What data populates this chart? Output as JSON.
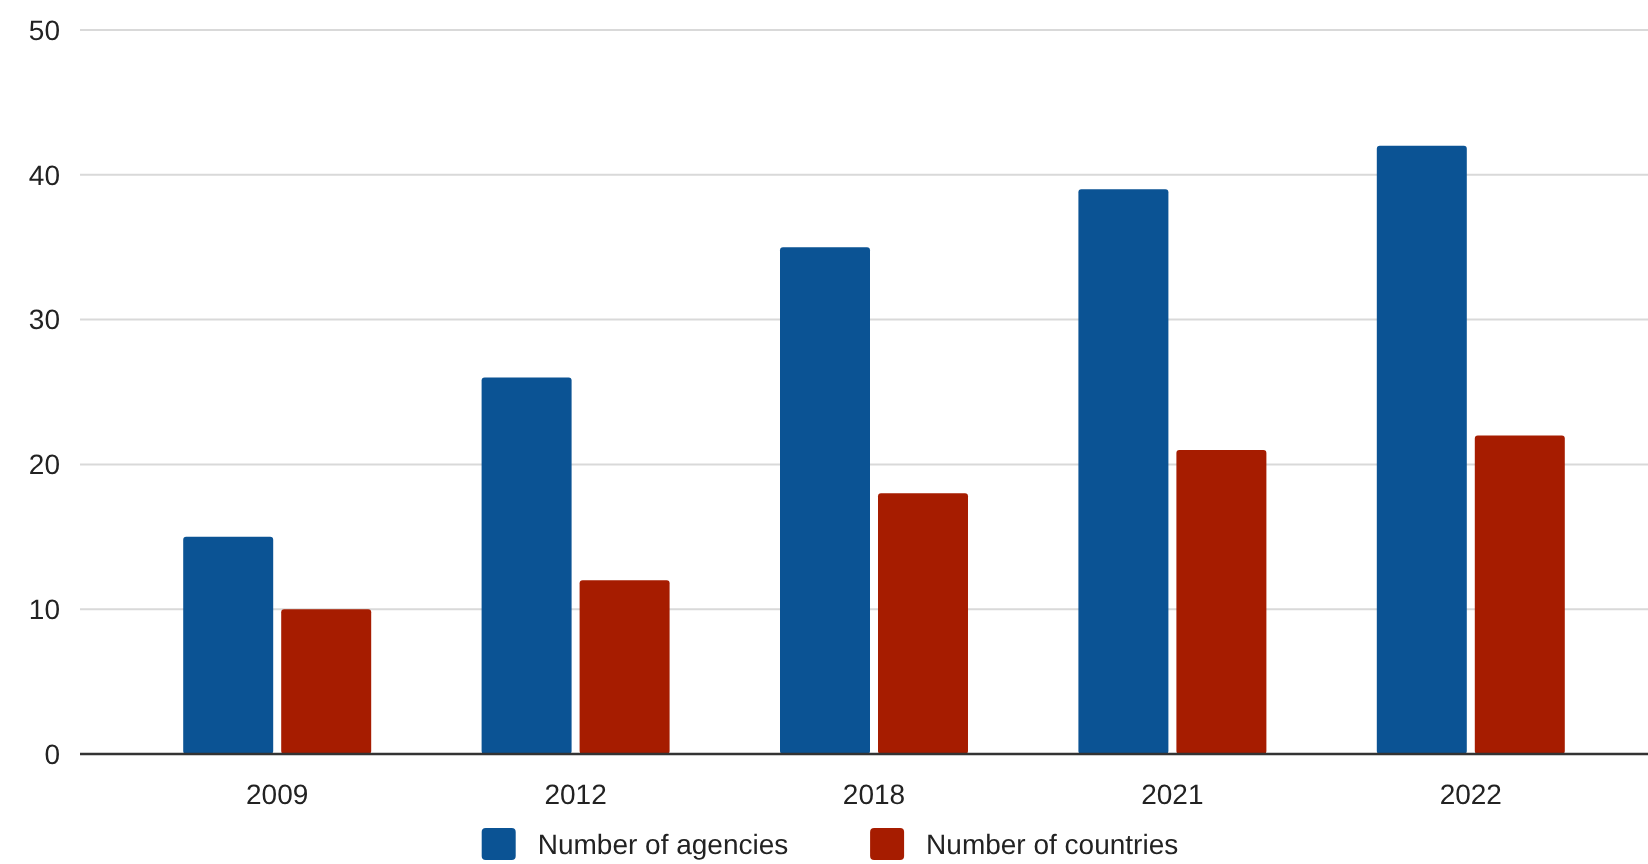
{
  "chart_data": {
    "type": "bar",
    "categories": [
      "2009",
      "2012",
      "2018",
      "2021",
      "2022"
    ],
    "series": [
      {
        "name": "Number of agencies",
        "color": "#0b5394",
        "values": [
          15,
          26,
          35,
          39,
          42
        ]
      },
      {
        "name": "Number of countries",
        "color": "#a61c00",
        "values": [
          10,
          12,
          18,
          21,
          22
        ]
      }
    ],
    "ylim": [
      0,
      50
    ],
    "yticks": [
      0,
      10,
      20,
      30,
      40,
      50
    ],
    "grid": "y",
    "legend": "bottom"
  }
}
